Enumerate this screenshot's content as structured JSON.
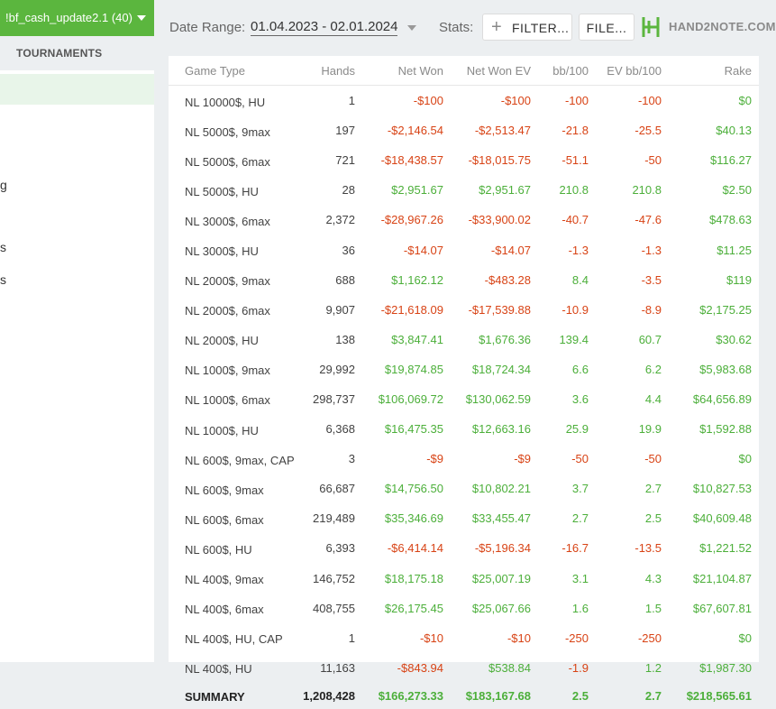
{
  "sidebar": {
    "dropdown_label": "!bf_cash_update2.1 (40)",
    "tab_label": "TOURNAMENTS",
    "fragments": [
      "g",
      "s",
      "s"
    ]
  },
  "toolbar": {
    "date_range_label": "Date Range:",
    "date_range_value": "01.04.2023 - 02.01.2024",
    "stats_label": "Stats:",
    "filter_button": "FILTER...",
    "file_button": "FILE...",
    "logo_text": "HAND2NOTE.COM"
  },
  "colors": {
    "accent_green": "#5bb63e",
    "negative": "#d84315",
    "positive": "#4caf3a"
  },
  "table": {
    "columns": [
      "Game Type",
      "Hands",
      "Net Won",
      "Net Won  EV",
      "bb/100",
      "EV bb/100",
      "Rake"
    ],
    "rows": [
      {
        "game": "NL 10000$, HU",
        "hands": "1",
        "net": "-$100",
        "net_ev": "-$100",
        "bb": "-100",
        "ev_bb": "-100",
        "rake": "$0"
      },
      {
        "game": "NL 5000$, 9max",
        "hands": "197",
        "net": "-$2,146.54",
        "net_ev": "-$2,513.47",
        "bb": "-21.8",
        "ev_bb": "-25.5",
        "rake": "$40.13"
      },
      {
        "game": "NL 5000$, 6max",
        "hands": "721",
        "net": "-$18,438.57",
        "net_ev": "-$18,015.75",
        "bb": "-51.1",
        "ev_bb": "-50",
        "rake": "$116.27"
      },
      {
        "game": "NL 5000$, HU",
        "hands": "28",
        "net": "$2,951.67",
        "net_ev": "$2,951.67",
        "bb": "210.8",
        "ev_bb": "210.8",
        "rake": "$2.50"
      },
      {
        "game": "NL 3000$, 6max",
        "hands": "2,372",
        "net": "-$28,967.26",
        "net_ev": "-$33,900.02",
        "bb": "-40.7",
        "ev_bb": "-47.6",
        "rake": "$478.63"
      },
      {
        "game": "NL 3000$, HU",
        "hands": "36",
        "net": "-$14.07",
        "net_ev": "-$14.07",
        "bb": "-1.3",
        "ev_bb": "-1.3",
        "rake": "$11.25"
      },
      {
        "game": "NL 2000$, 9max",
        "hands": "688",
        "net": "$1,162.12",
        "net_ev": "-$483.28",
        "bb": "8.4",
        "ev_bb": "-3.5",
        "rake": "$119"
      },
      {
        "game": "NL 2000$, 6max",
        "hands": "9,907",
        "net": "-$21,618.09",
        "net_ev": "-$17,539.88",
        "bb": "-10.9",
        "ev_bb": "-8.9",
        "rake": "$2,175.25"
      },
      {
        "game": "NL 2000$, HU",
        "hands": "138",
        "net": "$3,847.41",
        "net_ev": "$1,676.36",
        "bb": "139.4",
        "ev_bb": "60.7",
        "rake": "$30.62"
      },
      {
        "game": "NL 1000$, 9max",
        "hands": "29,992",
        "net": "$19,874.85",
        "net_ev": "$18,724.34",
        "bb": "6.6",
        "ev_bb": "6.2",
        "rake": "$5,983.68"
      },
      {
        "game": "NL 1000$, 6max",
        "hands": "298,737",
        "net": "$106,069.72",
        "net_ev": "$130,062.59",
        "bb": "3.6",
        "ev_bb": "4.4",
        "rake": "$64,656.89"
      },
      {
        "game": "NL 1000$, HU",
        "hands": "6,368",
        "net": "$16,475.35",
        "net_ev": "$12,663.16",
        "bb": "25.9",
        "ev_bb": "19.9",
        "rake": "$1,592.88"
      },
      {
        "game": "NL 600$, 9max, CAP",
        "hands": "3",
        "net": "-$9",
        "net_ev": "-$9",
        "bb": "-50",
        "ev_bb": "-50",
        "rake": "$0"
      },
      {
        "game": "NL 600$, 9max",
        "hands": "66,687",
        "net": "$14,756.50",
        "net_ev": "$10,802.21",
        "bb": "3.7",
        "ev_bb": "2.7",
        "rake": "$10,827.53"
      },
      {
        "game": "NL 600$, 6max",
        "hands": "219,489",
        "net": "$35,346.69",
        "net_ev": "$33,455.47",
        "bb": "2.7",
        "ev_bb": "2.5",
        "rake": "$40,609.48"
      },
      {
        "game": "NL 600$, HU",
        "hands": "6,393",
        "net": "-$6,414.14",
        "net_ev": "-$5,196.34",
        "bb": "-16.7",
        "ev_bb": "-13.5",
        "rake": "$1,221.52"
      },
      {
        "game": "NL 400$, 9max",
        "hands": "146,752",
        "net": "$18,175.18",
        "net_ev": "$25,007.19",
        "bb": "3.1",
        "ev_bb": "4.3",
        "rake": "$21,104.87"
      },
      {
        "game": "NL 400$, 6max",
        "hands": "408,755",
        "net": "$26,175.45",
        "net_ev": "$25,067.66",
        "bb": "1.6",
        "ev_bb": "1.5",
        "rake": "$67,607.81"
      },
      {
        "game": "NL 400$, HU, CAP",
        "hands": "1",
        "net": "-$10",
        "net_ev": "-$10",
        "bb": "-250",
        "ev_bb": "-250",
        "rake": "$0"
      },
      {
        "game": "NL 400$, HU",
        "hands": "11,163",
        "net": "-$843.94",
        "net_ev": "$538.84",
        "bb": "-1.9",
        "ev_bb": "1.2",
        "rake": "$1,987.30"
      }
    ],
    "summary": {
      "game": "SUMMARY",
      "hands": "1,208,428",
      "net": "$166,273.33",
      "net_ev": "$183,167.68",
      "bb": "2.5",
      "ev_bb": "2.7",
      "rake": "$218,565.61"
    }
  }
}
